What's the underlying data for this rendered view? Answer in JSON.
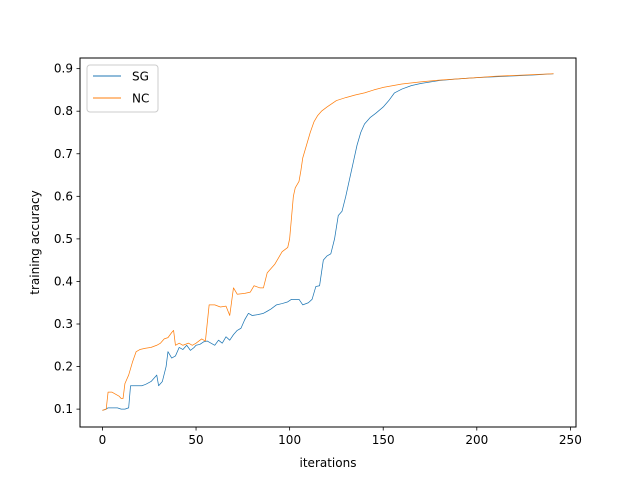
{
  "chart_data": {
    "type": "line",
    "xlabel": "iterations",
    "ylabel": "training accuracy",
    "xlim": [
      -12,
      253
    ],
    "ylim": [
      0.058,
      0.925
    ],
    "xticks": [
      0,
      50,
      100,
      150,
      200,
      250
    ],
    "yticks": [
      0.1,
      0.2,
      0.3,
      0.4,
      0.5,
      0.6,
      0.7,
      0.8,
      0.9
    ],
    "grid": false,
    "legend": "top-left",
    "series": [
      {
        "name": "SG",
        "color": "#1f77b4",
        "points": [
          [
            0,
            0.097
          ],
          [
            2,
            0.1
          ],
          [
            3,
            0.103
          ],
          [
            8,
            0.103
          ],
          [
            10,
            0.1
          ],
          [
            12,
            0.1
          ],
          [
            14,
            0.103
          ],
          [
            15,
            0.155
          ],
          [
            18,
            0.155
          ],
          [
            21,
            0.155
          ],
          [
            23,
            0.158
          ],
          [
            26,
            0.165
          ],
          [
            28,
            0.175
          ],
          [
            29,
            0.18
          ],
          [
            30,
            0.155
          ],
          [
            32,
            0.165
          ],
          [
            34,
            0.2
          ],
          [
            35,
            0.235
          ],
          [
            37,
            0.22
          ],
          [
            39,
            0.225
          ],
          [
            41,
            0.245
          ],
          [
            43,
            0.24
          ],
          [
            45,
            0.25
          ],
          [
            47,
            0.238
          ],
          [
            49,
            0.245
          ],
          [
            50,
            0.25
          ],
          [
            52,
            0.252
          ],
          [
            54,
            0.258
          ],
          [
            56,
            0.26
          ],
          [
            58,
            0.255
          ],
          [
            60,
            0.25
          ],
          [
            62,
            0.262
          ],
          [
            64,
            0.255
          ],
          [
            66,
            0.27
          ],
          [
            68,
            0.262
          ],
          [
            70,
            0.275
          ],
          [
            72,
            0.285
          ],
          [
            74,
            0.29
          ],
          [
            76,
            0.31
          ],
          [
            78,
            0.325
          ],
          [
            80,
            0.32
          ],
          [
            83,
            0.322
          ],
          [
            86,
            0.325
          ],
          [
            88,
            0.33
          ],
          [
            90,
            0.335
          ],
          [
            93,
            0.345
          ],
          [
            96,
            0.348
          ],
          [
            99,
            0.352
          ],
          [
            101,
            0.358
          ],
          [
            105,
            0.358
          ],
          [
            107,
            0.345
          ],
          [
            110,
            0.35
          ],
          [
            112,
            0.358
          ],
          [
            114,
            0.388
          ],
          [
            116,
            0.39
          ],
          [
            118,
            0.45
          ],
          [
            120,
            0.46
          ],
          [
            122,
            0.465
          ],
          [
            124,
            0.5
          ],
          [
            126,
            0.555
          ],
          [
            128,
            0.565
          ],
          [
            130,
            0.6
          ],
          [
            132,
            0.64
          ],
          [
            134,
            0.68
          ],
          [
            136,
            0.72
          ],
          [
            138,
            0.75
          ],
          [
            140,
            0.77
          ],
          [
            143,
            0.785
          ],
          [
            146,
            0.795
          ],
          [
            150,
            0.81
          ],
          [
            153,
            0.825
          ],
          [
            156,
            0.843
          ],
          [
            160,
            0.852
          ],
          [
            165,
            0.86
          ],
          [
            170,
            0.865
          ],
          [
            180,
            0.872
          ],
          [
            190,
            0.876
          ],
          [
            200,
            0.879
          ],
          [
            210,
            0.881
          ],
          [
            220,
            0.883
          ],
          [
            230,
            0.885
          ],
          [
            241,
            0.888
          ]
        ]
      },
      {
        "name": "NC",
        "color": "#ff7f0e",
        "points": [
          [
            0,
            0.097
          ],
          [
            2,
            0.1
          ],
          [
            3,
            0.14
          ],
          [
            5,
            0.14
          ],
          [
            7,
            0.135
          ],
          [
            9,
            0.13
          ],
          [
            10,
            0.125
          ],
          [
            11,
            0.125
          ],
          [
            12,
            0.16
          ],
          [
            14,
            0.18
          ],
          [
            16,
            0.21
          ],
          [
            18,
            0.235
          ],
          [
            20,
            0.24
          ],
          [
            23,
            0.243
          ],
          [
            26,
            0.245
          ],
          [
            29,
            0.25
          ],
          [
            31,
            0.255
          ],
          [
            33,
            0.265
          ],
          [
            35,
            0.268
          ],
          [
            37,
            0.28
          ],
          [
            38,
            0.285
          ],
          [
            39,
            0.25
          ],
          [
            41,
            0.255
          ],
          [
            43,
            0.25
          ],
          [
            46,
            0.255
          ],
          [
            48,
            0.25
          ],
          [
            50,
            0.255
          ],
          [
            53,
            0.265
          ],
          [
            55,
            0.26
          ],
          [
            57,
            0.345
          ],
          [
            60,
            0.345
          ],
          [
            63,
            0.34
          ],
          [
            66,
            0.342
          ],
          [
            68,
            0.32
          ],
          [
            70,
            0.385
          ],
          [
            72,
            0.37
          ],
          [
            76,
            0.372
          ],
          [
            79,
            0.375
          ],
          [
            81,
            0.39
          ],
          [
            84,
            0.385
          ],
          [
            86,
            0.385
          ],
          [
            88,
            0.42
          ],
          [
            90,
            0.43
          ],
          [
            92,
            0.44
          ],
          [
            94,
            0.455
          ],
          [
            96,
            0.47
          ],
          [
            99,
            0.48
          ],
          [
            100,
            0.5
          ],
          [
            101,
            0.55
          ],
          [
            102,
            0.6
          ],
          [
            103,
            0.62
          ],
          [
            105,
            0.635
          ],
          [
            106,
            0.66
          ],
          [
            107,
            0.69
          ],
          [
            109,
            0.72
          ],
          [
            111,
            0.75
          ],
          [
            113,
            0.775
          ],
          [
            115,
            0.79
          ],
          [
            117,
            0.8
          ],
          [
            120,
            0.81
          ],
          [
            125,
            0.825
          ],
          [
            130,
            0.832
          ],
          [
            135,
            0.838
          ],
          [
            140,
            0.843
          ],
          [
            145,
            0.85
          ],
          [
            150,
            0.856
          ],
          [
            160,
            0.864
          ],
          [
            170,
            0.869
          ],
          [
            180,
            0.873
          ],
          [
            190,
            0.876
          ],
          [
            200,
            0.879
          ],
          [
            210,
            0.882
          ],
          [
            220,
            0.884
          ],
          [
            230,
            0.886
          ],
          [
            241,
            0.888
          ]
        ]
      }
    ]
  }
}
